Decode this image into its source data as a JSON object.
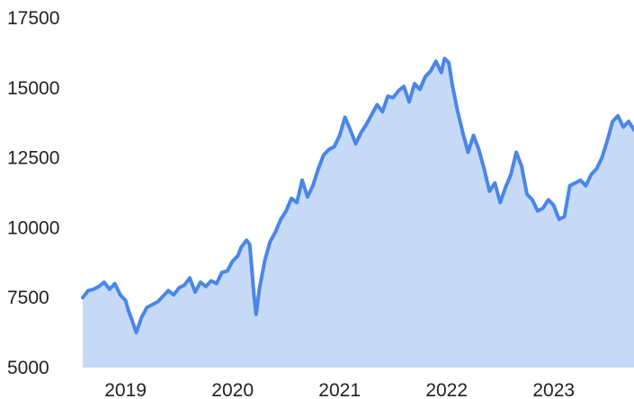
{
  "chart_data": {
    "type": "area",
    "title": "",
    "xlabel": "",
    "ylabel": "",
    "xlim": [
      2018.6,
      2023.75
    ],
    "ylim": [
      5000,
      17500
    ],
    "grid": false,
    "legend": "none",
    "x_ticks": [
      {
        "value": 2019,
        "label": "2019"
      },
      {
        "value": 2020,
        "label": "2020"
      },
      {
        "value": 2021,
        "label": "2021"
      },
      {
        "value": 2022,
        "label": "2022"
      },
      {
        "value": 2023,
        "label": "2023"
      }
    ],
    "y_ticks": [
      {
        "value": 5000,
        "label": "5000"
      },
      {
        "value": 7500,
        "label": "7500"
      },
      {
        "value": 10000,
        "label": "10000"
      },
      {
        "value": 12500,
        "label": "12500"
      },
      {
        "value": 15000,
        "label": "15000"
      },
      {
        "value": 17500,
        "label": "17500"
      }
    ],
    "colors": {
      "line": "#4a86e8",
      "fill": "#c6daf8"
    },
    "series": [
      {
        "x": [
          2018.6,
          2018.65,
          2018.7,
          2018.75,
          2018.8,
          2018.85,
          2018.9,
          2018.95,
          2019.0,
          2019.03,
          2019.06,
          2019.1,
          2019.15,
          2019.2,
          2019.3,
          2019.4,
          2019.45,
          2019.5,
          2019.55,
          2019.6,
          2019.65,
          2019.7,
          2019.75,
          2019.8,
          2019.85,
          2019.9,
          2019.95,
          2020.0,
          2020.05,
          2020.08,
          2020.1,
          2020.13,
          2020.16,
          2020.18,
          2020.2,
          2020.22,
          2020.25,
          2020.3,
          2020.35,
          2020.4,
          2020.45,
          2020.5,
          2020.55,
          2020.6,
          2020.65,
          2020.7,
          2020.75,
          2020.8,
          2020.85,
          2020.9,
          2020.95,
          2021.0,
          2021.05,
          2021.1,
          2021.15,
          2021.2,
          2021.25,
          2021.3,
          2021.35,
          2021.4,
          2021.45,
          2021.5,
          2021.55,
          2021.6,
          2021.65,
          2021.7,
          2021.75,
          2021.8,
          2021.85,
          2021.9,
          2021.95,
          2021.98,
          2022.02,
          2022.05,
          2022.1,
          2022.15,
          2022.2,
          2022.25,
          2022.3,
          2022.35,
          2022.4,
          2022.45,
          2022.5,
          2022.55,
          2022.6,
          2022.65,
          2022.7,
          2022.75,
          2022.8,
          2022.85,
          2022.9,
          2022.95,
          2023.0,
          2023.05,
          2023.1,
          2023.15,
          2023.2,
          2023.25,
          2023.3,
          2023.35,
          2023.4,
          2023.45,
          2023.5,
          2023.55,
          2023.6,
          2023.65,
          2023.7,
          2023.75
        ],
        "values": [
          7500,
          7750,
          7800,
          7900,
          8050,
          7800,
          8000,
          7600,
          7400,
          7000,
          6700,
          6250,
          6800,
          7150,
          7350,
          7750,
          7600,
          7850,
          7950,
          8200,
          7700,
          8050,
          7900,
          8100,
          8000,
          8400,
          8450,
          8800,
          9000,
          9300,
          9400,
          9550,
          9400,
          8500,
          7600,
          6900,
          7800,
          8800,
          9500,
          9850,
          10300,
          10600,
          11050,
          10900,
          11700,
          11100,
          11500,
          12100,
          12600,
          12800,
          12900,
          13300,
          13950,
          13500,
          13000,
          13400,
          13700,
          14050,
          14400,
          14150,
          14700,
          14650,
          14900,
          15050,
          14500,
          15150,
          14950,
          15400,
          15600,
          15950,
          15550,
          16050,
          15900,
          15150,
          14200,
          13400,
          12700,
          13300,
          12800,
          12100,
          11300,
          11600,
          10900,
          11450,
          11900,
          12700,
          12200,
          11200,
          11000,
          10600,
          10700,
          11000,
          10800,
          10300,
          10400,
          11500,
          11600,
          11700,
          11500,
          11900,
          12100,
          12500,
          13100,
          13800,
          14000,
          13600,
          13800,
          13500
        ]
      }
    ]
  }
}
